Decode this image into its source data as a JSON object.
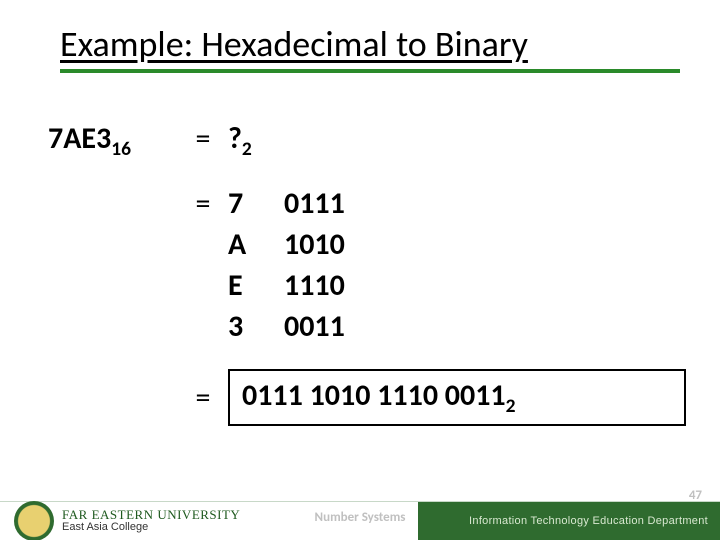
{
  "title": "Example: Hexadecimal to Binary",
  "source_value": "7AE3",
  "source_base": "16",
  "question_mark": "?",
  "target_base": "2",
  "equals": "=",
  "digits": [
    {
      "hex": "7",
      "bin": "0111"
    },
    {
      "hex": "A",
      "bin": "1010"
    },
    {
      "hex": "E",
      "bin": "1110"
    },
    {
      "hex": "3",
      "bin": "0011"
    }
  ],
  "answer_value": "0111 1010 1110 0011",
  "answer_base": "2",
  "footer": {
    "university": "FAR EASTERN UNIVERSITY",
    "college": "East Asia College",
    "center": "Number Systems",
    "department": "Information Technology Education Department",
    "page": "47"
  },
  "colors": {
    "title_underline": "#2a8a2a",
    "footer_green": "#2f6b2f",
    "footer_text": "#d8e8d0",
    "muted": "#c0c0c0",
    "text": "#000000",
    "bg": "#ffffff"
  },
  "typography": {
    "title_fontsize": 36,
    "body_fontsize": 30,
    "footer_fontsize": 11
  }
}
